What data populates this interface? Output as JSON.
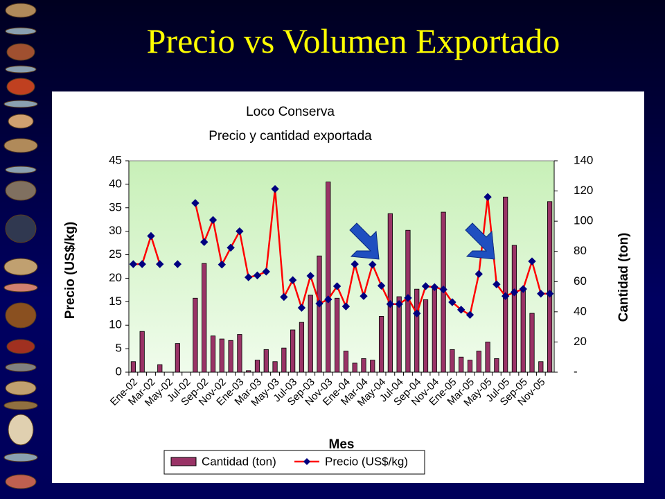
{
  "slide_title": "Precio vs Volumen Exportado",
  "chart_data": {
    "type": "combo",
    "title": "Loco Conserva",
    "subtitle": "Precio y cantidad exportada",
    "x_label": "Mes",
    "y_label": "Precio (US$/kg)",
    "y2_label": "Cantidad (ton)",
    "categories": [
      "Ene-02",
      null,
      "Mar-02",
      null,
      "May-02",
      null,
      "Jul-02",
      null,
      "Sep-02",
      null,
      "Nov-02",
      null,
      "Ene-03",
      null,
      "Mar-03",
      null,
      "May-03",
      null,
      "Jul-03",
      null,
      "Sep-03",
      null,
      "Nov-03",
      null,
      "Ene-04",
      null,
      "Mar-04",
      null,
      "May-04",
      null,
      "Jul-04",
      null,
      "Sep-04",
      null,
      "Nov-04",
      null,
      "Ene-05",
      null,
      "Mar-05",
      null,
      "May-05",
      null,
      "Jul-05",
      null,
      "Sep-05",
      null,
      "Nov-05",
      null
    ],
    "series": [
      {
        "name": "Cantidad (ton)",
        "type": "bar",
        "axis": "y2",
        "color": "#993366",
        "values": [
          7,
          27,
          0,
          5,
          0,
          19,
          0,
          49,
          72,
          24,
          22,
          21,
          25,
          1,
          8,
          15,
          7,
          16,
          28,
          33,
          51,
          77,
          126,
          49,
          14,
          6,
          9,
          8,
          37,
          105,
          50,
          94,
          55,
          48,
          55,
          106,
          15,
          10,
          8,
          14,
          20,
          9,
          116,
          84,
          54,
          39,
          7,
          113
        ]
      },
      {
        "name": "Precio (US$/kg)",
        "type": "line",
        "color": "#ff0000",
        "marker_color": "#000080",
        "values": [
          23,
          23,
          29,
          23,
          null,
          23,
          null,
          36,
          27.7,
          32.4,
          22.9,
          26.5,
          30,
          20.2,
          20.6,
          21.4,
          39,
          16,
          19.6,
          13.7,
          20.5,
          14.6,
          15.5,
          18.3,
          14,
          23,
          16.2,
          22.9,
          18.4,
          14.5,
          14.5,
          15.8,
          12.5,
          18.3,
          18.1,
          17.6,
          14.9,
          13.3,
          12.2,
          20.9,
          37.3,
          18.7,
          16.2,
          17,
          17.7,
          23.6,
          16.7,
          16.7
        ]
      }
    ],
    "ylim": [
      0,
      45
    ],
    "yticks": [
      0,
      5,
      10,
      15,
      20,
      25,
      30,
      35,
      40,
      45
    ],
    "y2lim": [
      0,
      140
    ],
    "y2ticks": [
      {
        "value": 0,
        "label": "-"
      },
      20,
      40,
      60,
      80,
      100,
      120,
      140
    ],
    "legend": "bottom"
  }
}
